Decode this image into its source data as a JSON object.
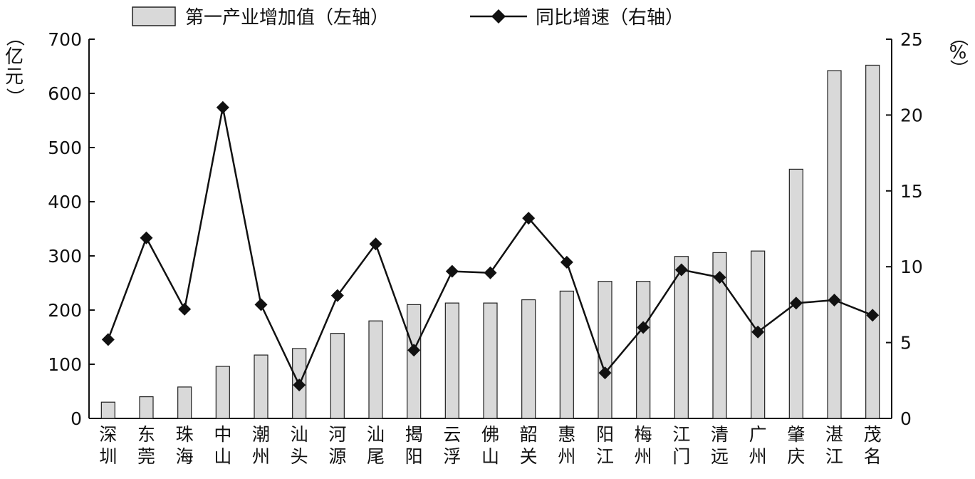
{
  "chart_data": {
    "type": "bar",
    "categories": [
      "深圳",
      "东莞",
      "珠海",
      "中山",
      "潮州",
      "汕头",
      "河源",
      "汕尾",
      "揭阳",
      "云浮",
      "佛山",
      "韶关",
      "惠州",
      "阳江",
      "梅州",
      "江门",
      "清远",
      "广州",
      "肇庆",
      "湛江",
      "茂名"
    ],
    "series": [
      {
        "name": "第一产业增加值（左轴）",
        "type": "bar",
        "axis": "left",
        "values": [
          30,
          40,
          58,
          96,
          117,
          129,
          157,
          180,
          210,
          213,
          213,
          219,
          235,
          253,
          253,
          299,
          306,
          309,
          460,
          642,
          652
        ]
      },
      {
        "name": "同比增速（右轴）",
        "type": "line",
        "axis": "right",
        "values": [
          5.2,
          11.9,
          7.2,
          20.5,
          7.5,
          2.2,
          8.1,
          11.5,
          4.5,
          9.7,
          9.6,
          13.2,
          10.3,
          3.0,
          6.0,
          9.8,
          9.3,
          5.7,
          7.6,
          7.8,
          6.8
        ]
      }
    ],
    "ylim_left": [
      0,
      700
    ],
    "ylim_right": [
      0,
      25
    ],
    "yticks_left": [
      "0",
      "100",
      "200",
      "300",
      "400",
      "500",
      "600",
      "700"
    ],
    "yticks_right": [
      "0",
      "5",
      "10",
      "15",
      "20",
      "25"
    ],
    "ylabel_left": "（亿元）",
    "ylabel_right": "（%）",
    "legend_position": "top",
    "grid": false,
    "colors": {
      "bar_fill": "#d9d9d9",
      "bar_stroke": "#222222",
      "line": "#111111",
      "marker": "#111111",
      "axis": "#111111"
    }
  }
}
